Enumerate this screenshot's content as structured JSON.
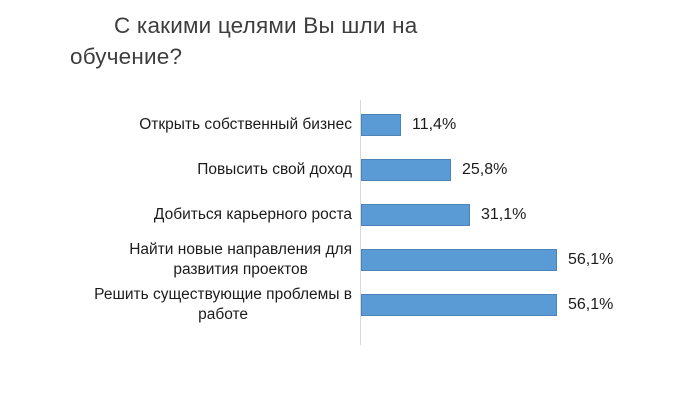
{
  "chart_data": {
    "type": "bar",
    "orientation": "horizontal",
    "title": "С какими целями Вы шли на обучение?",
    "title_lines": [
      "С какими целями Вы шли на",
      "обучение?"
    ],
    "categories": [
      "Открыть собственный бизнес",
      "Повысить свой доход",
      "Добиться карьерного роста",
      "Найти новые направления для развития проектов",
      "Решить существующие проблемы в работе"
    ],
    "category_lines": [
      [
        "Открыть собственный бизнес"
      ],
      [
        "Повысить свой доход"
      ],
      [
        "Добиться карьерного роста"
      ],
      [
        "Найти новые направления для",
        "развития проектов"
      ],
      [
        "Решить существующие проблемы в",
        "работе"
      ]
    ],
    "values": [
      11.4,
      25.8,
      31.1,
      56.1,
      56.1
    ],
    "value_labels": [
      "11,4%",
      "25,8%",
      "31,1%",
      "56,1%",
      "56,1%"
    ],
    "xlabel": "",
    "ylabel": "",
    "xlim": [
      0,
      60
    ],
    "grid": false,
    "legend": false,
    "bar_color": "#5b9bd5",
    "axis_line_color": "#d9d9d9",
    "text_color": "#1c1c1c",
    "title_color": "#3d3d3d"
  }
}
